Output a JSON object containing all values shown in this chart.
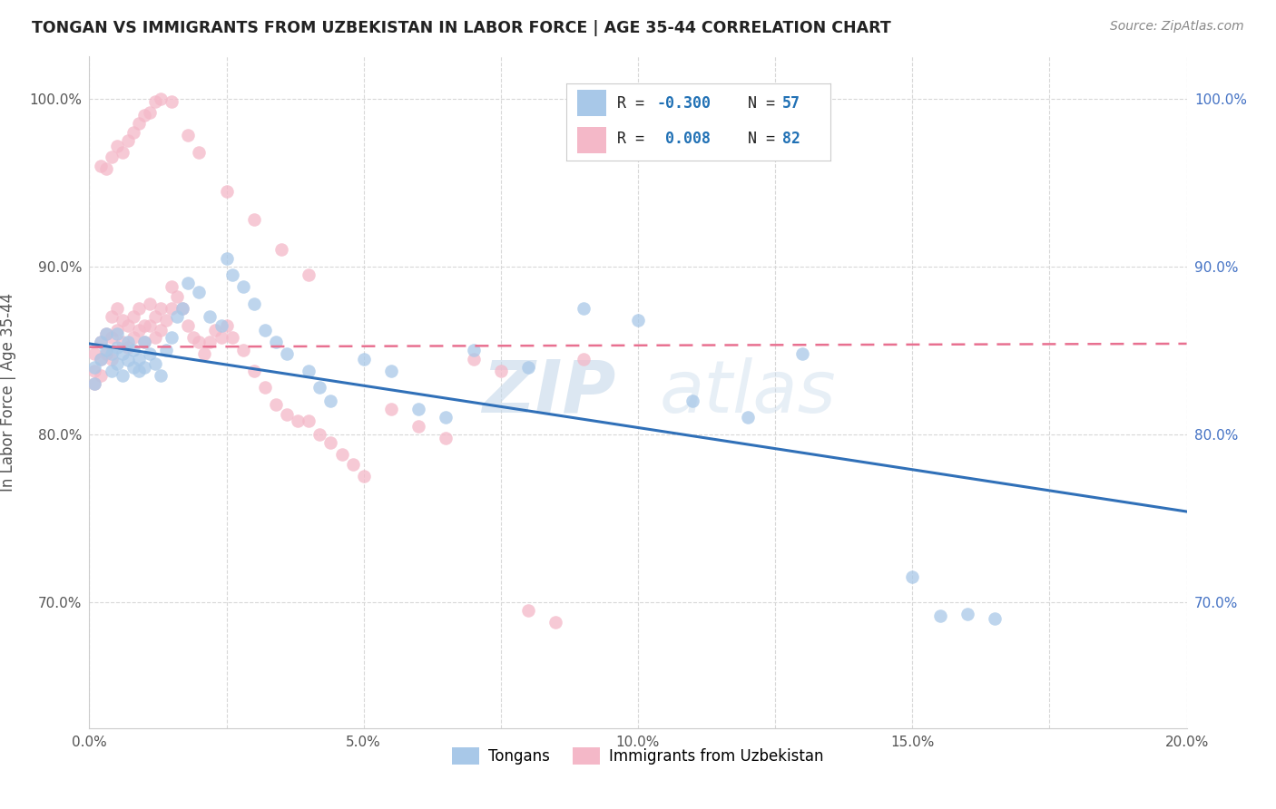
{
  "title": "TONGAN VS IMMIGRANTS FROM UZBEKISTAN IN LABOR FORCE | AGE 35-44 CORRELATION CHART",
  "source": "Source: ZipAtlas.com",
  "ylabel": "In Labor Force | Age 35-44",
  "xlim": [
    0.0,
    0.2
  ],
  "ylim": [
    0.625,
    1.025
  ],
  "xtick_labels": [
    "0.0%",
    "",
    "5.0%",
    "",
    "10.0%",
    "",
    "15.0%",
    "",
    "20.0%"
  ],
  "xtick_vals": [
    0.0,
    0.025,
    0.05,
    0.075,
    0.1,
    0.125,
    0.15,
    0.175,
    0.2
  ],
  "ytick_labels": [
    "70.0%",
    "80.0%",
    "90.0%",
    "100.0%"
  ],
  "ytick_vals": [
    0.7,
    0.8,
    0.9,
    1.0
  ],
  "blue_color": "#a8c8e8",
  "pink_color": "#f4b8c8",
  "blue_line_color": "#3070b8",
  "pink_line_color": "#e87090",
  "legend_R_blue": "-0.300",
  "legend_N_blue": "57",
  "legend_R_pink": "0.008",
  "legend_N_pink": "82",
  "legend_label_blue": "Tongans",
  "legend_label_pink": "Immigrants from Uzbekistan",
  "blue_trend_x0": 0.0,
  "blue_trend_y0": 0.854,
  "blue_trend_x1": 0.2,
  "blue_trend_y1": 0.754,
  "pink_trend_x0": 0.0,
  "pink_trend_y0": 0.852,
  "pink_trend_x1": 0.2,
  "pink_trend_y1": 0.854,
  "blue_scatter_x": [
    0.001,
    0.001,
    0.002,
    0.002,
    0.003,
    0.003,
    0.004,
    0.004,
    0.005,
    0.005,
    0.005,
    0.006,
    0.006,
    0.007,
    0.007,
    0.008,
    0.008,
    0.009,
    0.009,
    0.01,
    0.01,
    0.011,
    0.012,
    0.013,
    0.014,
    0.015,
    0.016,
    0.017,
    0.018,
    0.02,
    0.022,
    0.024,
    0.025,
    0.026,
    0.028,
    0.03,
    0.032,
    0.034,
    0.036,
    0.04,
    0.042,
    0.044,
    0.05,
    0.055,
    0.06,
    0.065,
    0.07,
    0.08,
    0.09,
    0.1,
    0.11,
    0.12,
    0.13,
    0.15,
    0.155,
    0.16,
    0.165
  ],
  "blue_scatter_y": [
    0.84,
    0.83,
    0.845,
    0.855,
    0.85,
    0.86,
    0.838,
    0.848,
    0.842,
    0.852,
    0.86,
    0.835,
    0.848,
    0.844,
    0.855,
    0.84,
    0.85,
    0.838,
    0.845,
    0.84,
    0.855,
    0.848,
    0.842,
    0.835,
    0.85,
    0.858,
    0.87,
    0.875,
    0.89,
    0.885,
    0.87,
    0.865,
    0.905,
    0.895,
    0.888,
    0.878,
    0.862,
    0.855,
    0.848,
    0.838,
    0.828,
    0.82,
    0.845,
    0.838,
    0.815,
    0.81,
    0.85,
    0.84,
    0.875,
    0.868,
    0.82,
    0.81,
    0.848,
    0.715,
    0.692,
    0.693,
    0.69
  ],
  "pink_scatter_x": [
    0.001,
    0.001,
    0.001,
    0.002,
    0.002,
    0.002,
    0.003,
    0.003,
    0.004,
    0.004,
    0.004,
    0.005,
    0.005,
    0.006,
    0.006,
    0.007,
    0.007,
    0.008,
    0.008,
    0.009,
    0.009,
    0.01,
    0.01,
    0.011,
    0.011,
    0.012,
    0.012,
    0.013,
    0.013,
    0.014,
    0.015,
    0.015,
    0.016,
    0.017,
    0.018,
    0.019,
    0.02,
    0.021,
    0.022,
    0.023,
    0.024,
    0.025,
    0.026,
    0.028,
    0.03,
    0.032,
    0.034,
    0.036,
    0.038,
    0.04,
    0.042,
    0.044,
    0.046,
    0.048,
    0.05,
    0.055,
    0.06,
    0.065,
    0.07,
    0.075,
    0.08,
    0.085,
    0.09,
    0.002,
    0.003,
    0.004,
    0.005,
    0.006,
    0.007,
    0.008,
    0.009,
    0.01,
    0.011,
    0.012,
    0.013,
    0.015,
    0.018,
    0.02,
    0.025,
    0.03,
    0.035,
    0.04
  ],
  "pink_scatter_y": [
    0.848,
    0.838,
    0.83,
    0.855,
    0.845,
    0.835,
    0.86,
    0.848,
    0.87,
    0.858,
    0.845,
    0.875,
    0.862,
    0.868,
    0.855,
    0.865,
    0.852,
    0.87,
    0.858,
    0.875,
    0.862,
    0.855,
    0.865,
    0.878,
    0.865,
    0.87,
    0.858,
    0.875,
    0.862,
    0.868,
    0.888,
    0.875,
    0.882,
    0.875,
    0.865,
    0.858,
    0.855,
    0.848,
    0.855,
    0.862,
    0.858,
    0.865,
    0.858,
    0.85,
    0.838,
    0.828,
    0.818,
    0.812,
    0.808,
    0.808,
    0.8,
    0.795,
    0.788,
    0.782,
    0.775,
    0.815,
    0.805,
    0.798,
    0.845,
    0.838,
    0.695,
    0.688,
    0.845,
    0.96,
    0.958,
    0.965,
    0.972,
    0.968,
    0.975,
    0.98,
    0.985,
    0.99,
    0.992,
    0.998,
    1.0,
    0.998,
    0.978,
    0.968,
    0.945,
    0.928,
    0.91,
    0.895
  ],
  "watermark_zip": "ZIP",
  "watermark_atlas": "atlas",
  "background_color": "#ffffff",
  "grid_color": "#d8d8d8"
}
